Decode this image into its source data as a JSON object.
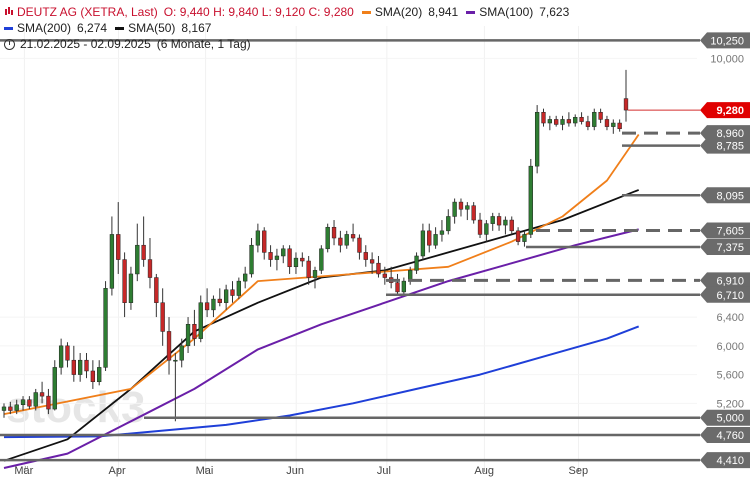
{
  "header": {
    "title": "DEUTZ AG (XETRA, Last)",
    "ohlc": "O: 9,440  H: 9,840  L: 9,120  C: 9,280",
    "range_text": "21.02.2025 - 02.09.2025",
    "range_detail": "(6 Monate, 1 Tag)"
  },
  "legend": [
    {
      "name": "SMA(20)",
      "value": "8,941",
      "color": "#f07f1a"
    },
    {
      "name": "SMA(100)",
      "value": "7,623",
      "color": "#6a1fa8"
    },
    {
      "name": "SMA(200)",
      "value": "6,274",
      "color": "#1f3fd8"
    },
    {
      "name": "SMA(50)",
      "value": "8,167",
      "color": "#111111"
    }
  ],
  "watermark": "stock3",
  "chart_data": {
    "type": "candlestick",
    "title": "DEUTZ AG (XETRA, Last)",
    "x_months": [
      "Mär",
      "Apr",
      "Mai",
      "Jun",
      "Jul",
      "Aug",
      "Sep"
    ],
    "y_ticks": [
      "10,000",
      "6,400",
      "6,000",
      "5,600",
      "5,200"
    ],
    "ylim": [
      4.3,
      10.45
    ],
    "price_levels": [
      {
        "label": "10,250",
        "value": 10.25,
        "style": "solid"
      },
      {
        "label": "8,960",
        "value": 8.96,
        "style": "dashed"
      },
      {
        "label": "8,785",
        "value": 8.785,
        "style": "solid"
      },
      {
        "label": "8,095",
        "value": 8.095,
        "style": "solid"
      },
      {
        "label": "7,605",
        "value": 7.605,
        "style": "dashed"
      },
      {
        "label": "7,375",
        "value": 7.375,
        "style": "solid"
      },
      {
        "label": "6,910",
        "value": 6.91,
        "style": "dashed"
      },
      {
        "label": "6,710",
        "value": 6.71,
        "style": "solid"
      },
      {
        "label": "5,000",
        "value": 5.0,
        "style": "solid"
      },
      {
        "label": "4,760",
        "value": 4.76,
        "style": "solid"
      },
      {
        "label": "4,410",
        "value": 4.41,
        "style": "solid"
      }
    ],
    "last_price": {
      "label": "9,280",
      "value": 9.28
    },
    "candles": [
      [
        5.1,
        5.2,
        5.0,
        5.15
      ],
      [
        5.15,
        5.22,
        5.05,
        5.1
      ],
      [
        5.1,
        5.25,
        5.05,
        5.18
      ],
      [
        5.18,
        5.3,
        5.1,
        5.25
      ],
      [
        5.25,
        5.3,
        5.12,
        5.16
      ],
      [
        5.16,
        5.4,
        5.1,
        5.35
      ],
      [
        5.35,
        5.5,
        5.2,
        5.3
      ],
      [
        5.3,
        5.4,
        5.05,
        5.12
      ],
      [
        5.12,
        5.8,
        5.1,
        5.7
      ],
      [
        5.7,
        6.1,
        5.6,
        6.0
      ],
      [
        6.0,
        6.05,
        5.7,
        5.8
      ],
      [
        5.8,
        6.0,
        5.5,
        5.6
      ],
      [
        5.6,
        5.9,
        5.5,
        5.8
      ],
      [
        5.8,
        5.9,
        5.55,
        5.65
      ],
      [
        5.65,
        5.8,
        5.4,
        5.5
      ],
      [
        5.5,
        5.8,
        5.45,
        5.7
      ],
      [
        5.7,
        6.9,
        5.65,
        6.8
      ],
      [
        6.8,
        7.8,
        6.7,
        7.55
      ],
      [
        7.55,
        8.0,
        7.0,
        7.2
      ],
      [
        7.2,
        7.3,
        6.4,
        6.6
      ],
      [
        6.6,
        7.1,
        6.5,
        7.0
      ],
      [
        7.0,
        7.7,
        6.9,
        7.4
      ],
      [
        7.4,
        7.8,
        7.1,
        7.2
      ],
      [
        7.2,
        7.5,
        6.8,
        6.95
      ],
      [
        6.95,
        7.0,
        6.4,
        6.6
      ],
      [
        6.6,
        6.8,
        6.0,
        6.2
      ],
      [
        6.2,
        6.4,
        5.6,
        5.8
      ],
      [
        5.8,
        5.9,
        4.95,
        5.8
      ],
      [
        5.8,
        6.1,
        5.7,
        6.0
      ],
      [
        6.0,
        6.4,
        5.9,
        6.3
      ],
      [
        6.3,
        6.5,
        6.0,
        6.1
      ],
      [
        6.1,
        6.7,
        6.05,
        6.6
      ],
      [
        6.6,
        6.8,
        6.4,
        6.5
      ],
      [
        6.5,
        6.7,
        6.4,
        6.65
      ],
      [
        6.65,
        6.8,
        6.55,
        6.6
      ],
      [
        6.6,
        6.85,
        6.5,
        6.78
      ],
      [
        6.78,
        6.9,
        6.6,
        6.7
      ],
      [
        6.7,
        6.95,
        6.65,
        6.9
      ],
      [
        6.9,
        7.1,
        6.8,
        7.0
      ],
      [
        7.0,
        7.5,
        6.95,
        7.4
      ],
      [
        7.4,
        7.7,
        7.3,
        7.6
      ],
      [
        7.6,
        7.65,
        7.2,
        7.3
      ],
      [
        7.3,
        7.4,
        7.1,
        7.2
      ],
      [
        7.2,
        7.35,
        7.05,
        7.25
      ],
      [
        7.25,
        7.4,
        7.15,
        7.35
      ],
      [
        7.35,
        7.4,
        7.0,
        7.1
      ],
      [
        7.1,
        7.3,
        7.0,
        7.22
      ],
      [
        7.22,
        7.3,
        7.1,
        7.18
      ],
      [
        7.18,
        7.25,
        6.85,
        6.95
      ],
      [
        6.95,
        7.1,
        6.8,
        7.05
      ],
      [
        7.05,
        7.4,
        7.0,
        7.35
      ],
      [
        7.35,
        7.7,
        7.3,
        7.65
      ],
      [
        7.65,
        7.75,
        7.4,
        7.5
      ],
      [
        7.5,
        7.6,
        7.3,
        7.4
      ],
      [
        7.4,
        7.6,
        7.35,
        7.55
      ],
      [
        7.55,
        7.7,
        7.45,
        7.5
      ],
      [
        7.5,
        7.55,
        7.2,
        7.3
      ],
      [
        7.3,
        7.4,
        7.1,
        7.2
      ],
      [
        7.2,
        7.3,
        7.0,
        7.15
      ],
      [
        7.15,
        7.25,
        6.95,
        7.0
      ],
      [
        7.0,
        7.1,
        6.85,
        6.95
      ],
      [
        6.95,
        7.1,
        6.8,
        6.88
      ],
      [
        6.88,
        7.0,
        6.7,
        6.75
      ],
      [
        6.75,
        6.95,
        6.7,
        6.9
      ],
      [
        6.9,
        7.1,
        6.85,
        7.05
      ],
      [
        7.05,
        7.3,
        7.0,
        7.25
      ],
      [
        7.25,
        7.7,
        7.2,
        7.6
      ],
      [
        7.6,
        7.7,
        7.3,
        7.4
      ],
      [
        7.4,
        7.65,
        7.35,
        7.55
      ],
      [
        7.55,
        7.75,
        7.45,
        7.6
      ],
      [
        7.6,
        7.9,
        7.55,
        7.8
      ],
      [
        7.8,
        8.05,
        7.7,
        8.0
      ],
      [
        8.0,
        8.05,
        7.8,
        7.9
      ],
      [
        7.9,
        8.0,
        7.75,
        7.95
      ],
      [
        7.95,
        8.0,
        7.7,
        7.75
      ],
      [
        7.75,
        7.85,
        7.5,
        7.55
      ],
      [
        7.55,
        7.75,
        7.45,
        7.7
      ],
      [
        7.7,
        7.85,
        7.6,
        7.8
      ],
      [
        7.8,
        7.85,
        7.6,
        7.68
      ],
      [
        7.68,
        7.8,
        7.55,
        7.75
      ],
      [
        7.75,
        7.8,
        7.55,
        7.6
      ],
      [
        7.6,
        7.65,
        7.4,
        7.45
      ],
      [
        7.45,
        7.6,
        7.38,
        7.55
      ],
      [
        7.55,
        8.6,
        7.5,
        8.5
      ],
      [
        8.5,
        9.35,
        8.4,
        9.25
      ],
      [
        9.25,
        9.3,
        9.05,
        9.1
      ],
      [
        9.1,
        9.2,
        9.0,
        9.15
      ],
      [
        9.15,
        9.2,
        9.05,
        9.08
      ],
      [
        9.08,
        9.2,
        9.0,
        9.15
      ],
      [
        9.15,
        9.25,
        9.05,
        9.1
      ],
      [
        9.1,
        9.22,
        9.05,
        9.18
      ],
      [
        9.18,
        9.25,
        9.08,
        9.12
      ],
      [
        9.12,
        9.2,
        9.0,
        9.05
      ],
      [
        9.05,
        9.3,
        9.0,
        9.25
      ],
      [
        9.25,
        9.3,
        9.1,
        9.15
      ],
      [
        9.15,
        9.2,
        9.0,
        9.05
      ],
      [
        9.05,
        9.15,
        8.95,
        9.1
      ],
      [
        9.1,
        9.15,
        8.98,
        9.02
      ],
      [
        9.44,
        9.84,
        9.12,
        9.28
      ]
    ],
    "sma20": [
      [
        0,
        5.05
      ],
      [
        20,
        5.4
      ],
      [
        30,
        6.1
      ],
      [
        40,
        6.9
      ],
      [
        55,
        7.0
      ],
      [
        70,
        7.1
      ],
      [
        80,
        7.45
      ],
      [
        88,
        7.8
      ],
      [
        95,
        8.3
      ],
      [
        100,
        8.94
      ]
    ],
    "sma50": [
      [
        0,
        4.4
      ],
      [
        10,
        4.7
      ],
      [
        20,
        5.4
      ],
      [
        30,
        6.2
      ],
      [
        40,
        6.6
      ],
      [
        50,
        6.95
      ],
      [
        60,
        7.05
      ],
      [
        70,
        7.3
      ],
      [
        80,
        7.55
      ],
      [
        88,
        7.75
      ],
      [
        100,
        8.17
      ]
    ],
    "sma100": [
      [
        0,
        4.3
      ],
      [
        10,
        4.5
      ],
      [
        20,
        4.95
      ],
      [
        30,
        5.4
      ],
      [
        40,
        5.95
      ],
      [
        50,
        6.3
      ],
      [
        60,
        6.6
      ],
      [
        70,
        6.9
      ],
      [
        80,
        7.15
      ],
      [
        90,
        7.4
      ],
      [
        100,
        7.62
      ]
    ],
    "sma200": [
      [
        0,
        4.73
      ],
      [
        15,
        4.74
      ],
      [
        25,
        4.82
      ],
      [
        35,
        4.9
      ],
      [
        45,
        5.03
      ],
      [
        55,
        5.2
      ],
      [
        65,
        5.4
      ],
      [
        75,
        5.6
      ],
      [
        85,
        5.85
      ],
      [
        95,
        6.1
      ],
      [
        100,
        6.27
      ]
    ]
  }
}
